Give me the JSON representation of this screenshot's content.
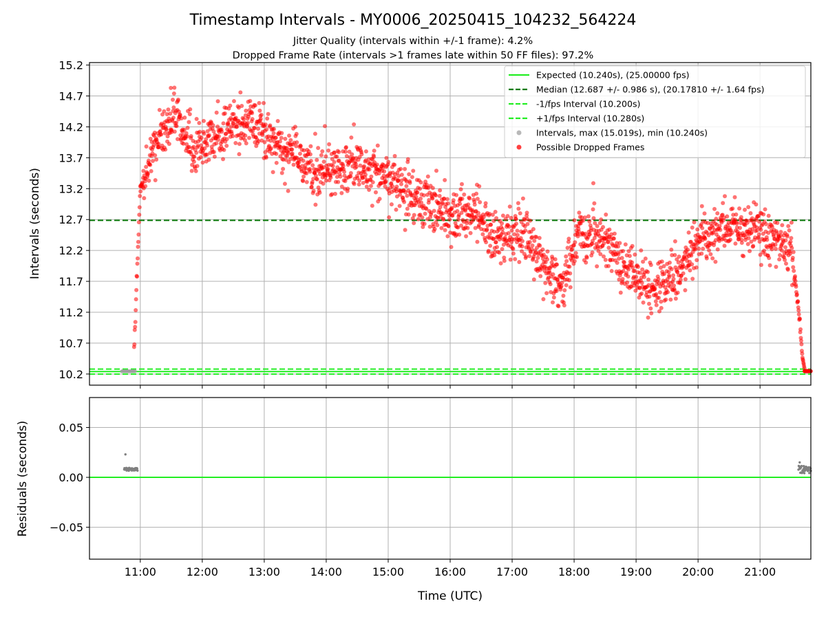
{
  "title": "Timestamp Intervals - MY0006_20250415_104232_564224",
  "subtitle_jitter": "Jitter Quality (intervals within +/-1 frame): 4.2%",
  "subtitle_dropped": "Dropped Frame Rate (intervals >1 frames late within 50 FF files): 97.2%",
  "chart_data": [
    {
      "type": "scatter",
      "panel": "intervals",
      "ylabel": "Intervals (seconds)",
      "xlabel": "",
      "xlim_hours": [
        10.18,
        21.82
      ],
      "ylim": [
        10.02,
        15.24
      ],
      "grid": true,
      "legend_position": "top-right",
      "x_tick_labels": [
        "11:00",
        "12:00",
        "13:00",
        "14:00",
        "15:00",
        "16:00",
        "17:00",
        "18:00",
        "19:00",
        "20:00",
        "21:00"
      ],
      "y_ticks": [
        10.2,
        10.7,
        11.2,
        11.7,
        12.2,
        12.7,
        13.2,
        13.7,
        14.2,
        14.7,
        15.2
      ],
      "y_tick_labels": [
        "10.2",
        "10.7",
        "11.2",
        "11.7",
        "12.2",
        "12.7",
        "13.2",
        "13.7",
        "14.2",
        "14.7",
        "15.2"
      ],
      "reference_lines": [
        {
          "name": "Expected (10.240s), (25.00000 fps)",
          "y": 10.24,
          "color": "#22ee22",
          "style": "solid"
        },
        {
          "name": "Median (12.687 +/- 0.986 s), (20.17810 +/- 1.64 fps)",
          "y": 12.687,
          "color": "#0a7a0a",
          "style": "dashed"
        },
        {
          "name": "-1/fps Interval (10.200s)",
          "y": 10.2,
          "color": "#22ee22",
          "style": "dashed"
        },
        {
          "name": "+1/fps Interval (10.280s)",
          "y": 10.28,
          "color": "#22ee22",
          "style": "dashed"
        }
      ],
      "series": [
        {
          "name": "Intervals, max (15.019s), min (10.240s)",
          "color": "#a0a0a0"
        },
        {
          "name": "Possible Dropped Frames",
          "color": "#ff0000"
        }
      ],
      "trend_anchors": [
        {
          "x": 10.78,
          "y": 10.248
        },
        {
          "x": 10.9,
          "y": 10.6
        },
        {
          "x": 11.0,
          "y": 13.2
        },
        {
          "x": 11.25,
          "y": 13.95
        },
        {
          "x": 11.55,
          "y": 14.4
        },
        {
          "x": 11.85,
          "y": 13.85
        },
        {
          "x": 12.2,
          "y": 14.0
        },
        {
          "x": 12.5,
          "y": 14.25
        },
        {
          "x": 12.8,
          "y": 14.25
        },
        {
          "x": 13.1,
          "y": 13.95
        },
        {
          "x": 13.5,
          "y": 13.75
        },
        {
          "x": 13.8,
          "y": 13.45
        },
        {
          "x": 14.1,
          "y": 13.55
        },
        {
          "x": 14.5,
          "y": 13.55
        },
        {
          "x": 14.9,
          "y": 13.45
        },
        {
          "x": 15.3,
          "y": 13.05
        },
        {
          "x": 15.7,
          "y": 12.95
        },
        {
          "x": 16.0,
          "y": 12.75
        },
        {
          "x": 16.4,
          "y": 12.85
        },
        {
          "x": 16.8,
          "y": 12.4
        },
        {
          "x": 17.2,
          "y": 12.55
        },
        {
          "x": 17.5,
          "y": 11.9
        },
        {
          "x": 17.8,
          "y": 11.55
        },
        {
          "x": 18.05,
          "y": 12.5
        },
        {
          "x": 18.4,
          "y": 12.45
        },
        {
          "x": 18.8,
          "y": 12.0
        },
        {
          "x": 19.2,
          "y": 11.6
        },
        {
          "x": 19.6,
          "y": 11.8
        },
        {
          "x": 20.0,
          "y": 12.3
        },
        {
          "x": 20.5,
          "y": 12.6
        },
        {
          "x": 20.9,
          "y": 12.5
        },
        {
          "x": 21.3,
          "y": 12.4
        },
        {
          "x": 21.5,
          "y": 12.2
        },
        {
          "x": 21.62,
          "y": 11.3
        },
        {
          "x": 21.68,
          "y": 10.5
        },
        {
          "x": 21.72,
          "y": 10.242
        },
        {
          "x": 21.82,
          "y": 10.242
        }
      ]
    },
    {
      "type": "scatter",
      "panel": "residuals",
      "ylabel": "Residuals (seconds)",
      "xlabel": "Time (UTC)",
      "xlim_hours": [
        10.18,
        21.82
      ],
      "ylim": [
        -0.082,
        0.08
      ],
      "grid": true,
      "x_tick_labels": [
        "11:00",
        "12:00",
        "13:00",
        "14:00",
        "15:00",
        "16:00",
        "17:00",
        "18:00",
        "19:00",
        "20:00",
        "21:00"
      ],
      "y_ticks": [
        0.05,
        0.0,
        -0.05
      ],
      "y_tick_labels": [
        "0.05",
        "0.00",
        "−0.05"
      ],
      "zero_line_color": "#22ee22",
      "point_color": "#808080",
      "residual_groups": [
        {
          "x_start": 10.74,
          "x_end": 10.96,
          "y_center": 0.008,
          "y_spread": 0.0015,
          "outlier_y": 0.023
        },
        {
          "x_start": 21.62,
          "x_end": 21.82,
          "y_center": 0.008,
          "y_spread": 0.004,
          "outlier_y": 0.015
        }
      ]
    }
  ]
}
